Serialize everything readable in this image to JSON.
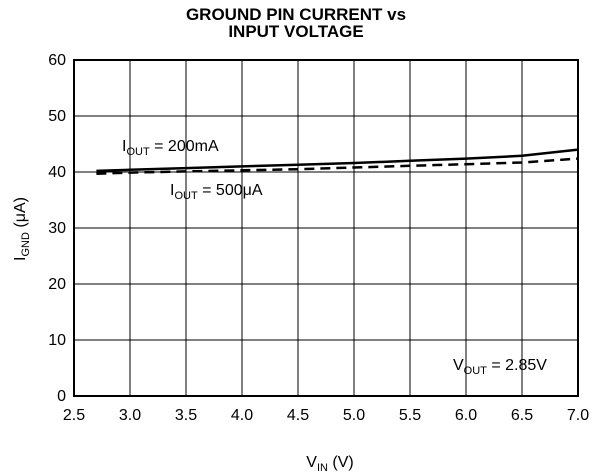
{
  "chart_data": {
    "type": "line",
    "title_lines": [
      "GROUND PIN CURRENT vs",
      "INPUT VOLTAGE"
    ],
    "xlabel": {
      "main": "V",
      "sub": "IN",
      "unit": " (V)"
    },
    "ylabel": {
      "main": "I",
      "sub": "GND",
      "unit": " (μA)"
    },
    "xlim": [
      2.5,
      7.0
    ],
    "ylim": [
      0,
      60
    ],
    "xticks": [
      "2.5",
      "3.0",
      "3.5",
      "4.0",
      "4.5",
      "5.0",
      "5.5",
      "6.0",
      "6.5",
      "7.0"
    ],
    "yticks": [
      "0",
      "10",
      "20",
      "30",
      "40",
      "50",
      "60"
    ],
    "grid": true,
    "series": [
      {
        "name": "I_OUT = 200mA",
        "style": "solid",
        "x": [
          2.7,
          3.0,
          3.5,
          4.0,
          4.5,
          5.0,
          5.5,
          6.0,
          6.5,
          7.0
        ],
        "y": [
          40.2,
          40.4,
          40.7,
          41.0,
          41.3,
          41.6,
          42.0,
          42.4,
          42.9,
          44.0
        ]
      },
      {
        "name": "I_OUT = 500μA",
        "style": "dashed",
        "x": [
          2.7,
          3.0,
          3.5,
          4.0,
          4.5,
          5.0,
          5.5,
          6.0,
          6.5,
          7.0
        ],
        "y": [
          39.7,
          39.9,
          40.1,
          40.3,
          40.5,
          40.8,
          41.1,
          41.4,
          41.7,
          42.4
        ]
      }
    ],
    "annotations": [
      {
        "main": "I",
        "sub": "OUT",
        "rest": " = 200mA"
      },
      {
        "main": "I",
        "sub": "OUT",
        "rest": " = 500μA"
      },
      {
        "main": "V",
        "sub": "OUT",
        "rest": " = 2.85V"
      }
    ]
  }
}
